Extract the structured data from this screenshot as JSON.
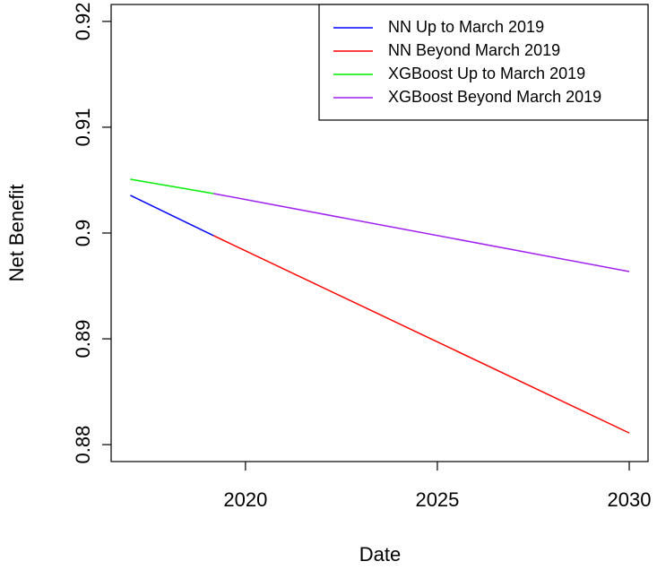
{
  "chart_data": {
    "type": "line",
    "x_label": "Date",
    "y_label": "Net Benefit",
    "xlim": [
      2016.5,
      2030.49
    ],
    "xticks": [
      2020,
      2025,
      2030
    ],
    "ylim": [
      0.8784,
      0.9216
    ],
    "yticks": [
      0.88,
      0.89,
      0.9,
      0.91,
      0.92
    ],
    "legend": "top-right",
    "series": [
      {
        "name": "NN Up to March 2019",
        "color": "#0000ff",
        "x": [
          2017,
          2019.17
        ],
        "values": [
          0.90356,
          0.89975
        ]
      },
      {
        "name": "NN Beyond March 2019",
        "color": "#ff0000",
        "x": [
          2019.17,
          2030
        ],
        "values": [
          0.89975,
          0.8811
        ]
      },
      {
        "name": "XGBoost Up to March 2019",
        "color": "#00ee00",
        "x": [
          2017,
          2019.17
        ],
        "values": [
          0.90508,
          0.90373
        ]
      },
      {
        "name": "XGBoost Beyond March 2019",
        "color": "#a020f0",
        "x": [
          2019.17,
          2030
        ],
        "values": [
          0.90373,
          0.89636
        ]
      }
    ]
  }
}
